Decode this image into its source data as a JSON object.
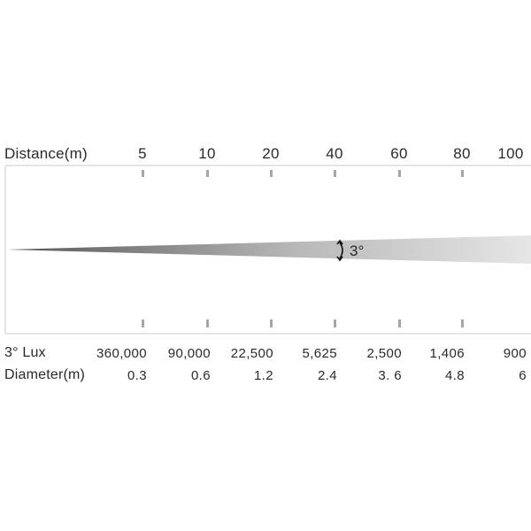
{
  "header": {
    "label": "Distance(m)",
    "distances": [
      "5",
      "10",
      "20",
      "40",
      "60",
      "80",
      "100"
    ]
  },
  "beam": {
    "angle_label": "3°"
  },
  "rows": [
    {
      "label": "3° Lux",
      "values": [
        "360,000",
        "90,000",
        "22,500",
        "5,625",
        "2,500",
        "1,406",
        "900"
      ]
    },
    {
      "label": "Diameter(m)",
      "values": [
        "0.3",
        "0.6",
        "1.2",
        "2.4",
        "3. 6",
        "4.8",
        "6"
      ]
    }
  ],
  "colors": {
    "frame": "#d6d6d6",
    "tick": "#a6a6a6",
    "beam_dark": "#555555",
    "beam_light": "#e6e6e6",
    "text": "#2a2a2a"
  }
}
